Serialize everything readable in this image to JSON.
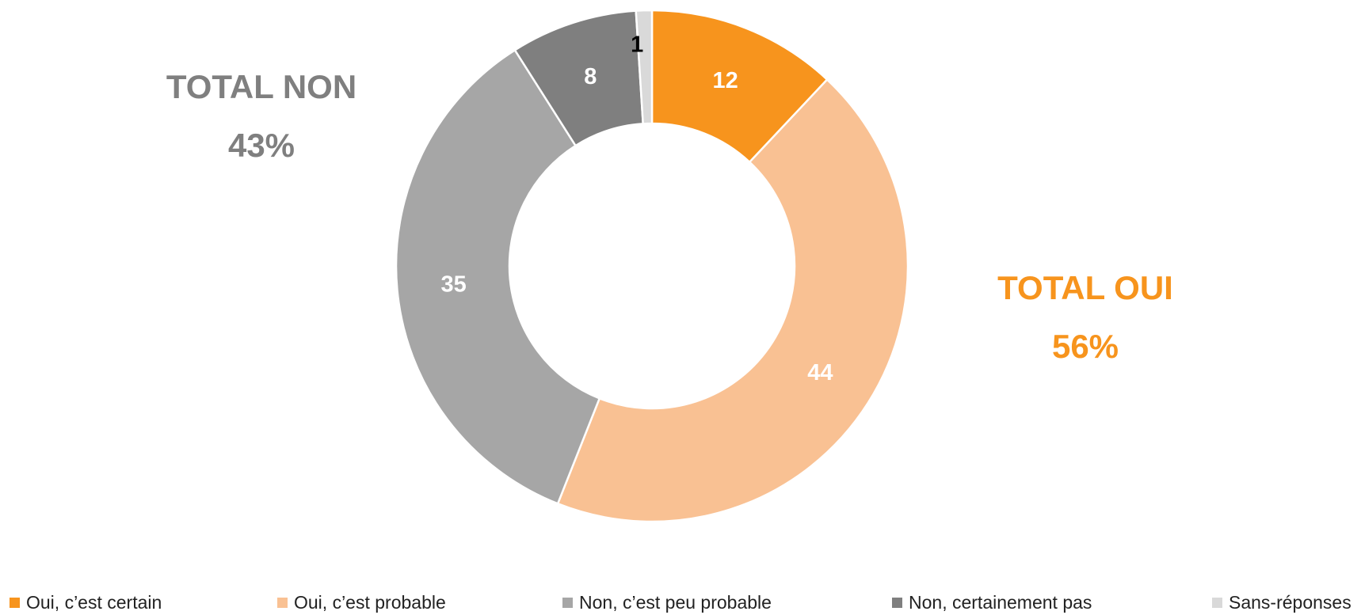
{
  "totals": {
    "non": {
      "title": "TOTAL NON",
      "value": "43%",
      "color": "#7f7f7f"
    },
    "oui": {
      "title": "TOTAL OUI",
      "value": "56%",
      "color": "#f7941d"
    }
  },
  "chart_data": {
    "type": "pie",
    "variant": "donut",
    "title": "",
    "categories": [
      "Oui, c’est certain",
      "Oui, c’est probable",
      "Non, c’est peu probable",
      "Non, certainement pas",
      "Sans-réponses"
    ],
    "values": [
      12,
      44,
      35,
      8,
      1
    ],
    "data_labels": [
      "12",
      "44",
      "35",
      "8",
      "1"
    ],
    "colors": [
      "#f7941d",
      "#f9c193",
      "#a6a6a6",
      "#7f7f7f",
      "#d9d9d9"
    ],
    "label_colors": [
      "#ffffff",
      "#ffffff",
      "#ffffff",
      "#ffffff",
      "#000000"
    ],
    "legend_position": "bottom",
    "start_angle": "12 o'clock, clockwise"
  }
}
